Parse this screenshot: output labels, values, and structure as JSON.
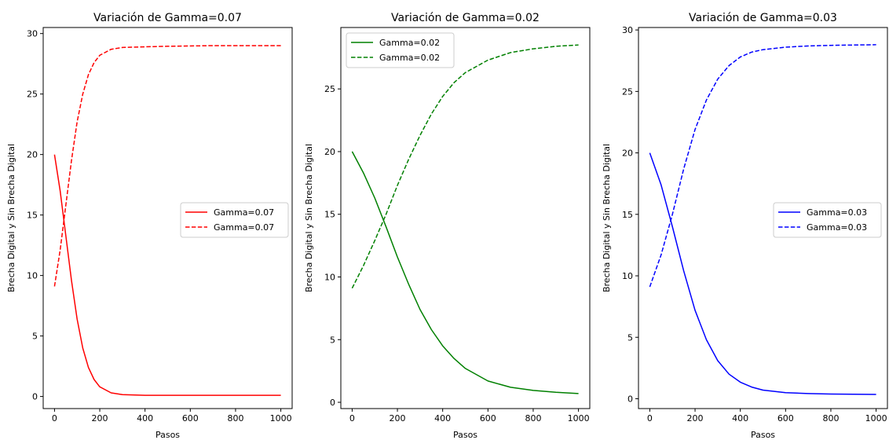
{
  "chart_data": [
    {
      "type": "line",
      "title": "Variación de Gamma=0.07",
      "xlabel": "Pasos",
      "ylabel": "Brecha Digital y Sin Brecha Digital",
      "xlim": [
        -50,
        1050
      ],
      "ylim": [
        -1.0,
        30.5
      ],
      "xticks": [
        0,
        200,
        400,
        600,
        800,
        1000
      ],
      "yticks": [
        0,
        5,
        10,
        15,
        20,
        25,
        30
      ],
      "legend_position": "center-right",
      "color": "#ff0000",
      "series": [
        {
          "name": "Gamma=0.07",
          "style": "solid",
          "x": [
            0,
            25,
            50,
            75,
            100,
            125,
            150,
            175,
            200,
            250,
            300,
            400,
            500,
            700,
            1000
          ],
          "y": [
            20.0,
            17.0,
            13.3,
            9.6,
            6.4,
            4.0,
            2.4,
            1.4,
            0.8,
            0.3,
            0.15,
            0.1,
            0.1,
            0.1,
            0.1
          ]
        },
        {
          "name": "Gamma=0.07",
          "style": "dashed",
          "x": [
            0,
            25,
            50,
            75,
            100,
            125,
            150,
            175,
            200,
            250,
            300,
            400,
            500,
            700,
            1000
          ],
          "y": [
            9.1,
            12.1,
            15.8,
            19.5,
            22.7,
            25.0,
            26.6,
            27.6,
            28.2,
            28.7,
            28.85,
            28.9,
            28.95,
            29.0,
            29.0
          ]
        }
      ]
    },
    {
      "type": "line",
      "title": "Variación de Gamma=0.02",
      "xlabel": "Pasos",
      "ylabel": "Brecha Digital y Sin Brecha Digital",
      "xlim": [
        -50,
        1050
      ],
      "ylim": [
        -0.5,
        29.9
      ],
      "xticks": [
        0,
        200,
        400,
        600,
        800,
        1000
      ],
      "yticks": [
        0,
        5,
        10,
        15,
        20,
        25
      ],
      "legend_position": "top-left",
      "color": "#008000",
      "series": [
        {
          "name": "Gamma=0.02",
          "style": "solid",
          "x": [
            0,
            50,
            100,
            150,
            200,
            250,
            300,
            350,
            400,
            450,
            500,
            600,
            700,
            800,
            900,
            1000
          ],
          "y": [
            20.0,
            18.3,
            16.3,
            14.0,
            11.6,
            9.4,
            7.4,
            5.8,
            4.5,
            3.5,
            2.7,
            1.7,
            1.2,
            0.95,
            0.8,
            0.7
          ]
        },
        {
          "name": "Gamma=0.02",
          "style": "dashed",
          "x": [
            0,
            50,
            100,
            150,
            200,
            250,
            300,
            350,
            400,
            450,
            500,
            600,
            700,
            800,
            900,
            1000
          ],
          "y": [
            9.1,
            10.9,
            12.9,
            15.0,
            17.3,
            19.4,
            21.3,
            23.0,
            24.4,
            25.5,
            26.3,
            27.3,
            27.9,
            28.2,
            28.4,
            28.5
          ]
        }
      ]
    },
    {
      "type": "line",
      "title": "Variación de Gamma=0.03",
      "xlabel": "Pasos",
      "ylabel": "Brecha Digital y Sin Brecha Digital",
      "xlim": [
        -50,
        1050
      ],
      "ylim": [
        -0.8,
        30.2
      ],
      "xticks": [
        0,
        200,
        400,
        600,
        800,
        1000
      ],
      "yticks": [
        0,
        5,
        10,
        15,
        20,
        25,
        30
      ],
      "legend_position": "center-right",
      "color": "#0000ff",
      "series": [
        {
          "name": "Gamma=0.03",
          "style": "solid",
          "x": [
            0,
            50,
            100,
            150,
            200,
            250,
            300,
            350,
            400,
            450,
            500,
            600,
            700,
            800,
            1000
          ],
          "y": [
            20.0,
            17.4,
            14.0,
            10.4,
            7.2,
            4.8,
            3.1,
            2.0,
            1.35,
            0.95,
            0.7,
            0.5,
            0.42,
            0.38,
            0.35
          ]
        },
        {
          "name": "Gamma=0.03",
          "style": "dashed",
          "x": [
            0,
            50,
            100,
            150,
            200,
            250,
            300,
            350,
            400,
            450,
            500,
            600,
            700,
            800,
            1000
          ],
          "y": [
            9.1,
            11.7,
            15.0,
            18.7,
            21.9,
            24.3,
            26.0,
            27.1,
            27.8,
            28.2,
            28.4,
            28.6,
            28.7,
            28.75,
            28.8
          ]
        }
      ]
    }
  ]
}
